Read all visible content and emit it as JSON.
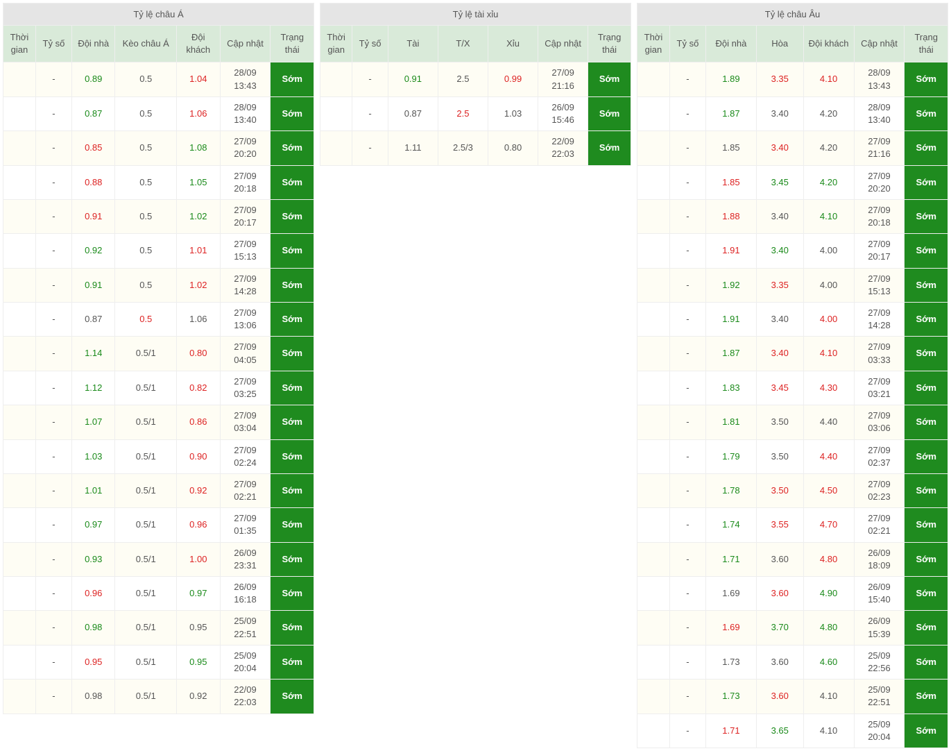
{
  "colors": {
    "title_bg": "#e5e5e5",
    "header_bg": "#d9ead9",
    "odd_row_bg": "#fefdf4",
    "even_row_bg": "#ffffff",
    "border": "#eeeeee",
    "text": "#555555",
    "green": "#1a8a1a",
    "red": "#d22222",
    "status_bg": "#1f8b1f",
    "status_text": "#ffffff"
  },
  "panels": [
    {
      "title": "Tỷ lệ châu Á",
      "columns": [
        "Thời gian",
        "Tỷ số",
        "Đội nhà",
        "Kèo châu Á",
        "Đội khách",
        "Cập nhật",
        "Trạng thái"
      ],
      "col_widths": [
        "9%",
        "10%",
        "12%",
        "17%",
        "12%",
        "14%",
        "12%"
      ],
      "rows": [
        {
          "time": "",
          "score": "-",
          "c1": {
            "v": "0.89",
            "c": "green"
          },
          "mid": {
            "v": "0.5",
            "c": ""
          },
          "c2": {
            "v": "1.04",
            "c": "red"
          },
          "date": "28/09 13:43",
          "status": "Sớm"
        },
        {
          "time": "",
          "score": "-",
          "c1": {
            "v": "0.87",
            "c": "green"
          },
          "mid": {
            "v": "0.5",
            "c": ""
          },
          "c2": {
            "v": "1.06",
            "c": "red"
          },
          "date": "28/09 13:40",
          "status": "Sớm"
        },
        {
          "time": "",
          "score": "-",
          "c1": {
            "v": "0.85",
            "c": "red"
          },
          "mid": {
            "v": "0.5",
            "c": ""
          },
          "c2": {
            "v": "1.08",
            "c": "green"
          },
          "date": "27/09 20:20",
          "status": "Sớm"
        },
        {
          "time": "",
          "score": "-",
          "c1": {
            "v": "0.88",
            "c": "red"
          },
          "mid": {
            "v": "0.5",
            "c": ""
          },
          "c2": {
            "v": "1.05",
            "c": "green"
          },
          "date": "27/09 20:18",
          "status": "Sớm"
        },
        {
          "time": "",
          "score": "-",
          "c1": {
            "v": "0.91",
            "c": "red"
          },
          "mid": {
            "v": "0.5",
            "c": ""
          },
          "c2": {
            "v": "1.02",
            "c": "green"
          },
          "date": "27/09 20:17",
          "status": "Sớm"
        },
        {
          "time": "",
          "score": "-",
          "c1": {
            "v": "0.92",
            "c": "green"
          },
          "mid": {
            "v": "0.5",
            "c": ""
          },
          "c2": {
            "v": "1.01",
            "c": "red"
          },
          "date": "27/09 15:13",
          "status": "Sớm"
        },
        {
          "time": "",
          "score": "-",
          "c1": {
            "v": "0.91",
            "c": "green"
          },
          "mid": {
            "v": "0.5",
            "c": ""
          },
          "c2": {
            "v": "1.02",
            "c": "red"
          },
          "date": "27/09 14:28",
          "status": "Sớm"
        },
        {
          "time": "",
          "score": "-",
          "c1": {
            "v": "0.87",
            "c": ""
          },
          "mid": {
            "v": "0.5",
            "c": "red"
          },
          "c2": {
            "v": "1.06",
            "c": ""
          },
          "date": "27/09 13:06",
          "status": "Sớm"
        },
        {
          "time": "",
          "score": "-",
          "c1": {
            "v": "1.14",
            "c": "green"
          },
          "mid": {
            "v": "0.5/1",
            "c": ""
          },
          "c2": {
            "v": "0.80",
            "c": "red"
          },
          "date": "27/09 04:05",
          "status": "Sớm"
        },
        {
          "time": "",
          "score": "-",
          "c1": {
            "v": "1.12",
            "c": "green"
          },
          "mid": {
            "v": "0.5/1",
            "c": ""
          },
          "c2": {
            "v": "0.82",
            "c": "red"
          },
          "date": "27/09 03:25",
          "status": "Sớm"
        },
        {
          "time": "",
          "score": "-",
          "c1": {
            "v": "1.07",
            "c": "green"
          },
          "mid": {
            "v": "0.5/1",
            "c": ""
          },
          "c2": {
            "v": "0.86",
            "c": "red"
          },
          "date": "27/09 03:04",
          "status": "Sớm"
        },
        {
          "time": "",
          "score": "-",
          "c1": {
            "v": "1.03",
            "c": "green"
          },
          "mid": {
            "v": "0.5/1",
            "c": ""
          },
          "c2": {
            "v": "0.90",
            "c": "red"
          },
          "date": "27/09 02:24",
          "status": "Sớm"
        },
        {
          "time": "",
          "score": "-",
          "c1": {
            "v": "1.01",
            "c": "green"
          },
          "mid": {
            "v": "0.5/1",
            "c": ""
          },
          "c2": {
            "v": "0.92",
            "c": "red"
          },
          "date": "27/09 02:21",
          "status": "Sớm"
        },
        {
          "time": "",
          "score": "-",
          "c1": {
            "v": "0.97",
            "c": "green"
          },
          "mid": {
            "v": "0.5/1",
            "c": ""
          },
          "c2": {
            "v": "0.96",
            "c": "red"
          },
          "date": "27/09 01:35",
          "status": "Sớm"
        },
        {
          "time": "",
          "score": "-",
          "c1": {
            "v": "0.93",
            "c": "green"
          },
          "mid": {
            "v": "0.5/1",
            "c": ""
          },
          "c2": {
            "v": "1.00",
            "c": "red"
          },
          "date": "26/09 23:31",
          "status": "Sớm"
        },
        {
          "time": "",
          "score": "-",
          "c1": {
            "v": "0.96",
            "c": "red"
          },
          "mid": {
            "v": "0.5/1",
            "c": ""
          },
          "c2": {
            "v": "0.97",
            "c": "green"
          },
          "date": "26/09 16:18",
          "status": "Sớm"
        },
        {
          "time": "",
          "score": "-",
          "c1": {
            "v": "0.98",
            "c": "green"
          },
          "mid": {
            "v": "0.5/1",
            "c": ""
          },
          "c2": {
            "v": "0.95",
            "c": ""
          },
          "date": "25/09 22:51",
          "status": "Sớm"
        },
        {
          "time": "",
          "score": "-",
          "c1": {
            "v": "0.95",
            "c": "red"
          },
          "mid": {
            "v": "0.5/1",
            "c": ""
          },
          "c2": {
            "v": "0.95",
            "c": "green"
          },
          "date": "25/09 20:04",
          "status": "Sớm"
        },
        {
          "time": "",
          "score": "-",
          "c1": {
            "v": "0.98",
            "c": ""
          },
          "mid": {
            "v": "0.5/1",
            "c": ""
          },
          "c2": {
            "v": "0.92",
            "c": ""
          },
          "date": "22/09 22:03",
          "status": "Sớm"
        }
      ]
    },
    {
      "title": "Tỷ lệ tài xỉu",
      "columns": [
        "Thời gian",
        "Tỷ số",
        "Tài",
        "T/X",
        "Xỉu",
        "Cập nhật",
        "Trạng thái"
      ],
      "col_widths": [
        "9%",
        "10%",
        "14%",
        "14%",
        "14%",
        "14%",
        "12%"
      ],
      "rows": [
        {
          "time": "",
          "score": "-",
          "c1": {
            "v": "0.91",
            "c": "green"
          },
          "mid": {
            "v": "2.5",
            "c": ""
          },
          "c2": {
            "v": "0.99",
            "c": "red"
          },
          "date": "27/09 21:16",
          "status": "Sớm"
        },
        {
          "time": "",
          "score": "-",
          "c1": {
            "v": "0.87",
            "c": ""
          },
          "mid": {
            "v": "2.5",
            "c": "red"
          },
          "c2": {
            "v": "1.03",
            "c": ""
          },
          "date": "26/09 15:46",
          "status": "Sớm"
        },
        {
          "time": "",
          "score": "-",
          "c1": {
            "v": "1.11",
            "c": ""
          },
          "mid": {
            "v": "2.5/3",
            "c": ""
          },
          "c2": {
            "v": "0.80",
            "c": ""
          },
          "date": "22/09 22:03",
          "status": "Sớm"
        }
      ]
    },
    {
      "title": "Tỷ lệ châu Âu",
      "columns": [
        "Thời gian",
        "Tỷ số",
        "Đội nhà",
        "Hòa",
        "Đội khách",
        "Cập nhật",
        "Trạng thái"
      ],
      "col_widths": [
        "9%",
        "10%",
        "14%",
        "13%",
        "14%",
        "14%",
        "12%"
      ],
      "rows": [
        {
          "time": "",
          "score": "-",
          "c1": {
            "v": "1.89",
            "c": "green"
          },
          "mid": {
            "v": "3.35",
            "c": "red"
          },
          "c2": {
            "v": "4.10",
            "c": "red"
          },
          "date": "28/09 13:43",
          "status": "Sớm"
        },
        {
          "time": "",
          "score": "-",
          "c1": {
            "v": "1.87",
            "c": "green"
          },
          "mid": {
            "v": "3.40",
            "c": ""
          },
          "c2": {
            "v": "4.20",
            "c": ""
          },
          "date": "28/09 13:40",
          "status": "Sớm"
        },
        {
          "time": "",
          "score": "-",
          "c1": {
            "v": "1.85",
            "c": ""
          },
          "mid": {
            "v": "3.40",
            "c": "red"
          },
          "c2": {
            "v": "4.20",
            "c": ""
          },
          "date": "27/09 21:16",
          "status": "Sớm"
        },
        {
          "time": "",
          "score": "-",
          "c1": {
            "v": "1.85",
            "c": "red"
          },
          "mid": {
            "v": "3.45",
            "c": "green"
          },
          "c2": {
            "v": "4.20",
            "c": "green"
          },
          "date": "27/09 20:20",
          "status": "Sớm"
        },
        {
          "time": "",
          "score": "-",
          "c1": {
            "v": "1.88",
            "c": "red"
          },
          "mid": {
            "v": "3.40",
            "c": ""
          },
          "c2": {
            "v": "4.10",
            "c": "green"
          },
          "date": "27/09 20:18",
          "status": "Sớm"
        },
        {
          "time": "",
          "score": "-",
          "c1": {
            "v": "1.91",
            "c": "red"
          },
          "mid": {
            "v": "3.40",
            "c": "green"
          },
          "c2": {
            "v": "4.00",
            "c": ""
          },
          "date": "27/09 20:17",
          "status": "Sớm"
        },
        {
          "time": "",
          "score": "-",
          "c1": {
            "v": "1.92",
            "c": "green"
          },
          "mid": {
            "v": "3.35",
            "c": "red"
          },
          "c2": {
            "v": "4.00",
            "c": ""
          },
          "date": "27/09 15:13",
          "status": "Sớm"
        },
        {
          "time": "",
          "score": "-",
          "c1": {
            "v": "1.91",
            "c": "green"
          },
          "mid": {
            "v": "3.40",
            "c": ""
          },
          "c2": {
            "v": "4.00",
            "c": "red"
          },
          "date": "27/09 14:28",
          "status": "Sớm"
        },
        {
          "time": "",
          "score": "-",
          "c1": {
            "v": "1.87",
            "c": "green"
          },
          "mid": {
            "v": "3.40",
            "c": "red"
          },
          "c2": {
            "v": "4.10",
            "c": "red"
          },
          "date": "27/09 03:33",
          "status": "Sớm"
        },
        {
          "time": "",
          "score": "-",
          "c1": {
            "v": "1.83",
            "c": "green"
          },
          "mid": {
            "v": "3.45",
            "c": "red"
          },
          "c2": {
            "v": "4.30",
            "c": "red"
          },
          "date": "27/09 03:21",
          "status": "Sớm"
        },
        {
          "time": "",
          "score": "-",
          "c1": {
            "v": "1.81",
            "c": "green"
          },
          "mid": {
            "v": "3.50",
            "c": ""
          },
          "c2": {
            "v": "4.40",
            "c": ""
          },
          "date": "27/09 03:06",
          "status": "Sớm"
        },
        {
          "time": "",
          "score": "-",
          "c1": {
            "v": "1.79",
            "c": "green"
          },
          "mid": {
            "v": "3.50",
            "c": ""
          },
          "c2": {
            "v": "4.40",
            "c": "red"
          },
          "date": "27/09 02:37",
          "status": "Sớm"
        },
        {
          "time": "",
          "score": "-",
          "c1": {
            "v": "1.78",
            "c": "green"
          },
          "mid": {
            "v": "3.50",
            "c": "red"
          },
          "c2": {
            "v": "4.50",
            "c": "red"
          },
          "date": "27/09 02:23",
          "status": "Sớm"
        },
        {
          "time": "",
          "score": "-",
          "c1": {
            "v": "1.74",
            "c": "green"
          },
          "mid": {
            "v": "3.55",
            "c": "red"
          },
          "c2": {
            "v": "4.70",
            "c": "red"
          },
          "date": "27/09 02:21",
          "status": "Sớm"
        },
        {
          "time": "",
          "score": "-",
          "c1": {
            "v": "1.71",
            "c": "green"
          },
          "mid": {
            "v": "3.60",
            "c": ""
          },
          "c2": {
            "v": "4.80",
            "c": "red"
          },
          "date": "26/09 18:09",
          "status": "Sớm"
        },
        {
          "time": "",
          "score": "-",
          "c1": {
            "v": "1.69",
            "c": ""
          },
          "mid": {
            "v": "3.60",
            "c": "red"
          },
          "c2": {
            "v": "4.90",
            "c": "green"
          },
          "date": "26/09 15:40",
          "status": "Sớm"
        },
        {
          "time": "",
          "score": "-",
          "c1": {
            "v": "1.69",
            "c": "red"
          },
          "mid": {
            "v": "3.70",
            "c": "green"
          },
          "c2": {
            "v": "4.80",
            "c": "green"
          },
          "date": "26/09 15:39",
          "status": "Sớm"
        },
        {
          "time": "",
          "score": "-",
          "c1": {
            "v": "1.73",
            "c": ""
          },
          "mid": {
            "v": "3.60",
            "c": ""
          },
          "c2": {
            "v": "4.60",
            "c": "green"
          },
          "date": "25/09 22:56",
          "status": "Sớm"
        },
        {
          "time": "",
          "score": "-",
          "c1": {
            "v": "1.73",
            "c": "green"
          },
          "mid": {
            "v": "3.60",
            "c": "red"
          },
          "c2": {
            "v": "4.10",
            "c": ""
          },
          "date": "25/09 22:51",
          "status": "Sớm"
        },
        {
          "time": "",
          "score": "-",
          "c1": {
            "v": "1.71",
            "c": "red"
          },
          "mid": {
            "v": "3.65",
            "c": "green"
          },
          "c2": {
            "v": "4.10",
            "c": ""
          },
          "date": "25/09 20:04",
          "status": "Sớm"
        }
      ]
    }
  ]
}
